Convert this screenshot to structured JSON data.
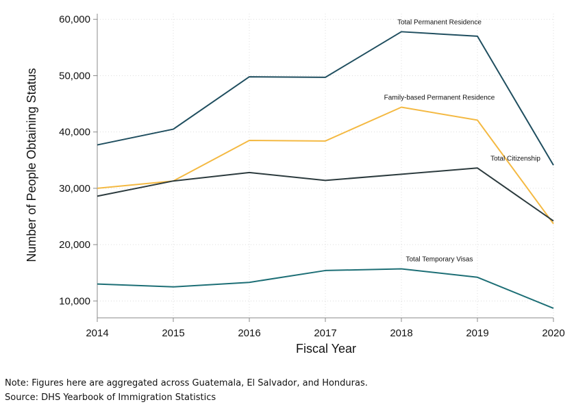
{
  "chart_data": {
    "type": "line",
    "x": [
      2014,
      2015,
      2016,
      2017,
      2018,
      2019,
      2020
    ],
    "xlabel": "Fiscal Year",
    "ylabel": "Number of People Obtaining Status",
    "ylim": [
      7000,
      61000
    ],
    "yticks": [
      10000,
      20000,
      30000,
      40000,
      50000,
      60000
    ],
    "ytick_labels": [
      "10,000",
      "20,000",
      "30,000",
      "40,000",
      "50,000",
      "60,000"
    ],
    "xtick_labels": [
      "2014",
      "2015",
      "2016",
      "2017",
      "2018",
      "2019",
      "2020"
    ],
    "grid": true,
    "legend": "none",
    "series": [
      {
        "name": "Total Permanent Residence",
        "color": "#1f4e5f",
        "values": [
          37700,
          40500,
          49800,
          49700,
          57800,
          57000,
          34100
        ]
      },
      {
        "name": "Family-based Permanent Residence",
        "color": "#f4b942",
        "values": [
          30000,
          31300,
          38500,
          38400,
          44400,
          42100,
          23700
        ]
      },
      {
        "name": "Total Citizenship",
        "color": "#2b3a3d",
        "values": [
          28600,
          31300,
          32800,
          31400,
          32500,
          33600,
          24200
        ]
      },
      {
        "name": "Total Temporary Visas",
        "color": "#1c6e75",
        "values": [
          13000,
          12500,
          13300,
          15400,
          15700,
          14200,
          8700
        ]
      }
    ]
  },
  "notes": {
    "note": "Note: Figures here are aggregated across Guatemala, El Salvador, and Honduras.",
    "source": "Source: DHS Yearbook of Immigration Statistics"
  }
}
